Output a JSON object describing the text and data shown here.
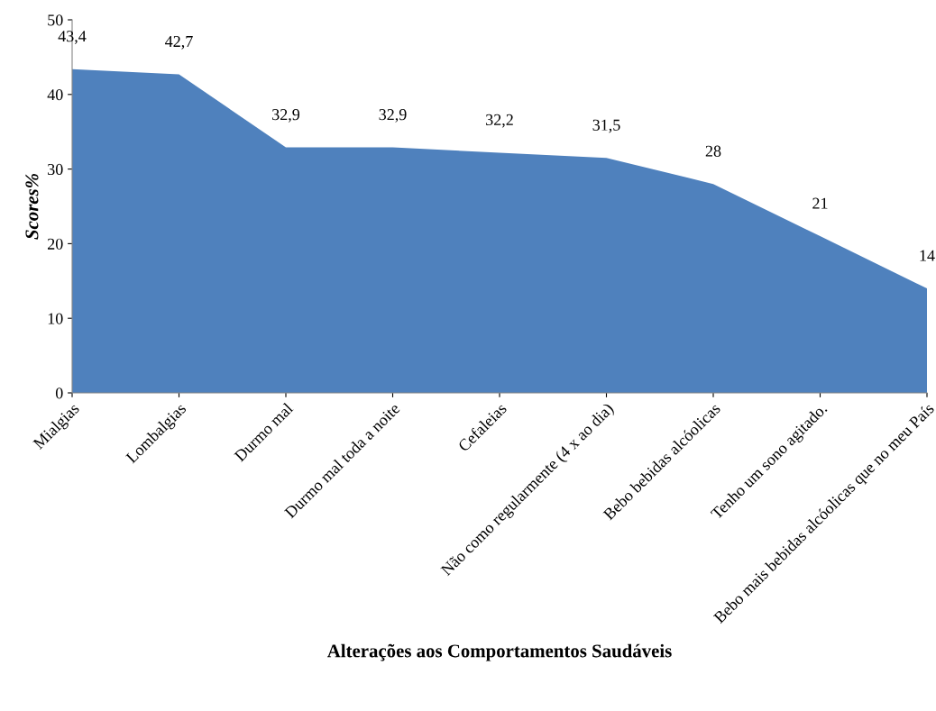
{
  "chart_data": {
    "type": "area",
    "xlabel": "Alterações aos Comportamentos Saudáveis",
    "ylabel": "Scores%",
    "categories": [
      "Mialgias",
      "Lombalgias",
      "Durmo mal",
      "Durmo mal toda a noite",
      "Cefaleias",
      "Não como regularmente (4 x ao dia)",
      "Bebo bebidas alcóolicas",
      "Tenho um sono agitado.",
      "Bebo mais bebidas alcóolicas que no meu País"
    ],
    "values": [
      43.4,
      42.7,
      32.9,
      32.9,
      32.2,
      31.5,
      28,
      21,
      14
    ],
    "value_labels": [
      "43,4",
      "42,7",
      "32,9",
      "32,9",
      "32,2",
      "31,5",
      "28",
      "21",
      "14"
    ],
    "color": "#4f81bd",
    "ylim": [
      0,
      50
    ],
    "yticks": [
      0,
      10,
      20,
      30,
      40,
      50
    ],
    "grid": false,
    "legend": false
  }
}
